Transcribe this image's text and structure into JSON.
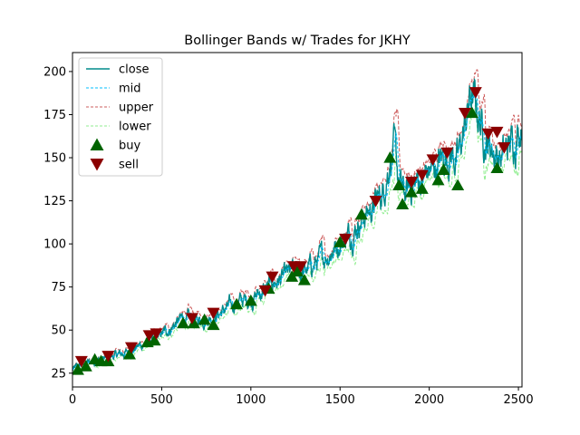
{
  "chart_data": {
    "type": "line",
    "title": "Bollinger Bands w/ Trades for JKHY",
    "xlabel": "",
    "ylabel": "",
    "xlim": [
      0,
      2520
    ],
    "ylim": [
      17,
      211
    ],
    "x_ticks": [
      0,
      500,
      1000,
      1500,
      2000,
      2500
    ],
    "y_ticks": [
      25,
      50,
      75,
      100,
      125,
      150,
      175,
      200
    ],
    "grid": false,
    "legend_position": "top-left",
    "anchors": {
      "x": [
        0,
        60,
        120,
        200,
        300,
        400,
        480,
        560,
        620,
        680,
        740,
        800,
        860,
        920,
        1000,
        1060,
        1120,
        1180,
        1240,
        1280,
        1320,
        1380,
        1440,
        1500,
        1560,
        1620,
        1680,
        1740,
        1780,
        1800,
        1830,
        1860,
        1900,
        1960,
        2000,
        2040,
        2080,
        2120,
        2160,
        2200,
        2230,
        2260,
        2290,
        2320,
        2360,
        2400,
        2440,
        2480,
        2520
      ],
      "close": [
        27,
        30,
        32,
        34,
        37,
        42,
        46,
        52,
        57,
        55,
        57,
        58,
        62,
        66,
        68,
        72,
        77,
        80,
        84,
        83,
        85,
        90,
        95,
        101,
        106,
        115,
        121,
        130,
        150,
        156,
        135,
        128,
        133,
        138,
        142,
        145,
        150,
        153,
        148,
        168,
        185,
        180,
        170,
        160,
        155,
        150,
        155,
        162,
        172
      ]
    },
    "series": [
      {
        "name": "close",
        "color": "#008b8b",
        "style": "solid"
      },
      {
        "name": "mid",
        "color": "#00bfff",
        "style": "dashed"
      },
      {
        "name": "upper",
        "color": "#cd5c5c",
        "style": "dashed"
      },
      {
        "name": "lower",
        "color": "#90ee90",
        "style": "dashed"
      },
      {
        "name": "buy",
        "color": "#006400",
        "marker": "triangle-up"
      },
      {
        "name": "sell",
        "color": "#8b0000",
        "marker": "triangle-down"
      }
    ],
    "buy_points": [
      {
        "x": 30,
        "y": 27
      },
      {
        "x": 75,
        "y": 29
      },
      {
        "x": 125,
        "y": 33
      },
      {
        "x": 160,
        "y": 32
      },
      {
        "x": 200,
        "y": 32
      },
      {
        "x": 320,
        "y": 36
      },
      {
        "x": 420,
        "y": 43
      },
      {
        "x": 460,
        "y": 44
      },
      {
        "x": 620,
        "y": 54
      },
      {
        "x": 680,
        "y": 54
      },
      {
        "x": 740,
        "y": 56
      },
      {
        "x": 790,
        "y": 53
      },
      {
        "x": 920,
        "y": 65
      },
      {
        "x": 1000,
        "y": 67
      },
      {
        "x": 1100,
        "y": 74
      },
      {
        "x": 1230,
        "y": 81
      },
      {
        "x": 1260,
        "y": 84
      },
      {
        "x": 1300,
        "y": 79
      },
      {
        "x": 1500,
        "y": 101
      },
      {
        "x": 1620,
        "y": 117
      },
      {
        "x": 1780,
        "y": 150
      },
      {
        "x": 1830,
        "y": 134
      },
      {
        "x": 1850,
        "y": 123
      },
      {
        "x": 1900,
        "y": 130
      },
      {
        "x": 1960,
        "y": 132
      },
      {
        "x": 2050,
        "y": 137
      },
      {
        "x": 2080,
        "y": 143
      },
      {
        "x": 2160,
        "y": 134
      },
      {
        "x": 2240,
        "y": 176
      },
      {
        "x": 2380,
        "y": 144
      }
    ],
    "sell_points": [
      {
        "x": 50,
        "y": 32
      },
      {
        "x": 200,
        "y": 35
      },
      {
        "x": 330,
        "y": 40
      },
      {
        "x": 430,
        "y": 47
      },
      {
        "x": 470,
        "y": 48
      },
      {
        "x": 670,
        "y": 57
      },
      {
        "x": 790,
        "y": 60
      },
      {
        "x": 1080,
        "y": 73
      },
      {
        "x": 1120,
        "y": 81
      },
      {
        "x": 1240,
        "y": 87
      },
      {
        "x": 1280,
        "y": 87
      },
      {
        "x": 1530,
        "y": 103
      },
      {
        "x": 1700,
        "y": 125
      },
      {
        "x": 1900,
        "y": 136
      },
      {
        "x": 1960,
        "y": 140
      },
      {
        "x": 2020,
        "y": 149
      },
      {
        "x": 2100,
        "y": 153
      },
      {
        "x": 2200,
        "y": 176
      },
      {
        "x": 2260,
        "y": 188
      },
      {
        "x": 2330,
        "y": 164
      },
      {
        "x": 2380,
        "y": 165
      },
      {
        "x": 2420,
        "y": 156
      }
    ]
  }
}
